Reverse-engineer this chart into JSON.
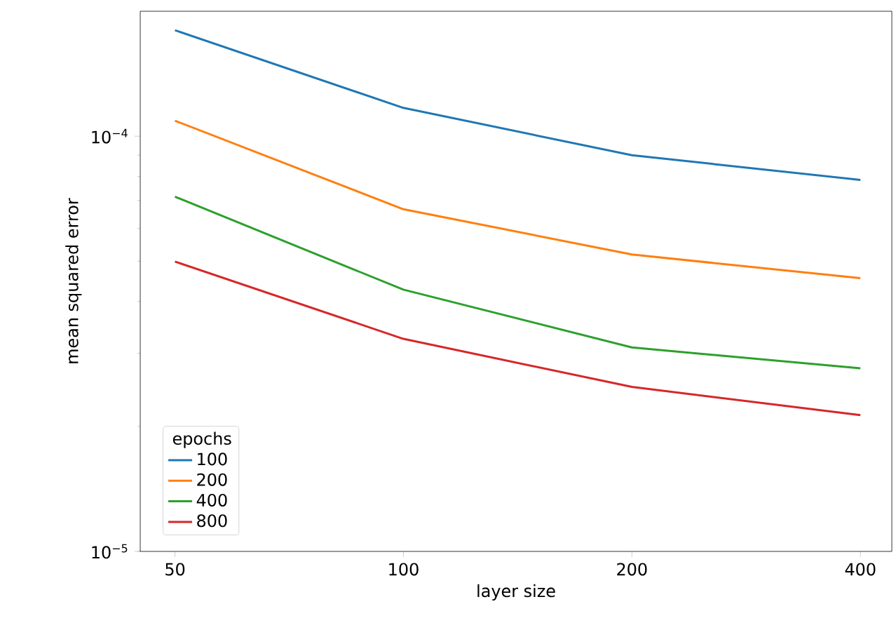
{
  "chart_data": {
    "type": "line",
    "xlabel": "layer size",
    "ylabel": "mean squared error",
    "legend_title": "epochs",
    "legend": "bottom left",
    "log": "xy",
    "grid": false,
    "marker": "none",
    "line_style": "solid",
    "x": [
      50,
      100,
      200,
      400
    ],
    "xlim": [
      45,
      440
    ],
    "xticks": [
      50,
      100,
      200,
      400
    ],
    "ylim": [
      1e-05,
      0.0002
    ],
    "yticks": [
      {
        "value": 1e-05,
        "label": "10$^{−5}$"
      },
      {
        "value": 0.0001,
        "label": "10$^{−4}$"
      }
    ],
    "series": [
      {
        "name": "100",
        "color": "#1f77b4",
        "values": [
          0.00018,
          0.000117,
          9e-05,
          7.85e-05
        ]
      },
      {
        "name": "200",
        "color": "#ff7f0e",
        "values": [
          0.000109,
          6.67e-05,
          5.19e-05,
          4.55e-05
        ]
      },
      {
        "name": "400",
        "color": "#2ca02c",
        "values": [
          7.15e-05,
          4.27e-05,
          3.1e-05,
          2.76e-05
        ]
      },
      {
        "name": "800",
        "color": "#d62728",
        "values": [
          4.99e-05,
          3.25e-05,
          2.49e-05,
          2.13e-05
        ]
      }
    ]
  }
}
